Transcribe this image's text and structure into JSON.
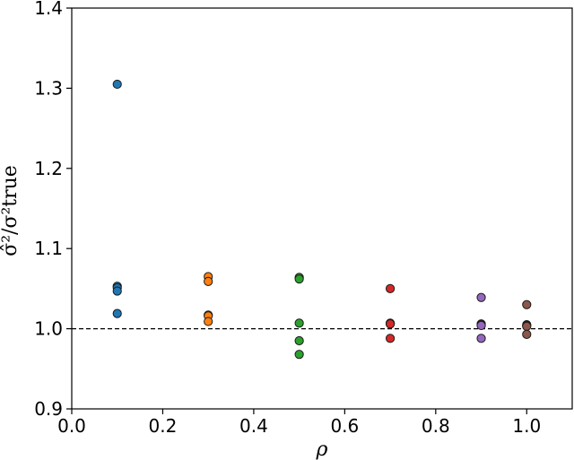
{
  "chart_data": {
    "type": "scatter",
    "xlabel": "ρ",
    "ylabel": "σ̂²/σ²true",
    "xlim": [
      0.0,
      1.1
    ],
    "ylim": [
      0.9,
      1.4
    ],
    "xticks": [
      "0.0",
      "0.2",
      "0.4",
      "0.6",
      "0.8",
      "1.0"
    ],
    "yticks": [
      "0.9",
      "1.0",
      "1.1",
      "1.2",
      "1.3",
      "1.4"
    ],
    "reference_line": {
      "y": 1.0,
      "style": "dashed"
    },
    "grid": false,
    "series": [
      {
        "color": "#1f77b4",
        "points": [
          [
            0.1,
            1.305
          ],
          [
            0.1,
            1.053
          ],
          [
            0.1,
            1.051
          ],
          [
            0.1,
            1.047
          ],
          [
            0.1,
            1.019
          ]
        ]
      },
      {
        "color": "#ff7f0e",
        "points": [
          [
            0.3,
            1.065
          ],
          [
            0.3,
            1.059
          ],
          [
            0.3,
            1.017
          ],
          [
            0.3,
            1.016
          ],
          [
            0.3,
            1.009
          ]
        ]
      },
      {
        "color": "#2ca02c",
        "points": [
          [
            0.5,
            1.064
          ],
          [
            0.5,
            1.062
          ],
          [
            0.5,
            1.007
          ],
          [
            0.5,
            0.985
          ],
          [
            0.5,
            0.968
          ]
        ]
      },
      {
        "color": "#d62728",
        "points": [
          [
            0.7,
            1.05
          ],
          [
            0.7,
            1.007
          ],
          [
            0.7,
            1.006
          ],
          [
            0.7,
            1.006
          ],
          [
            0.7,
            0.988
          ]
        ]
      },
      {
        "color": "#9467bd",
        "points": [
          [
            0.9,
            1.039
          ],
          [
            0.9,
            1.006
          ],
          [
            0.9,
            1.005
          ],
          [
            0.9,
            1.004
          ],
          [
            0.9,
            0.988
          ]
        ]
      },
      {
        "color": "#8c564b",
        "points": [
          [
            1.0,
            1.03
          ],
          [
            1.0,
            1.005
          ],
          [
            1.0,
            1.004
          ],
          [
            1.0,
            1.003
          ],
          [
            1.0,
            0.993
          ]
        ]
      }
    ]
  }
}
